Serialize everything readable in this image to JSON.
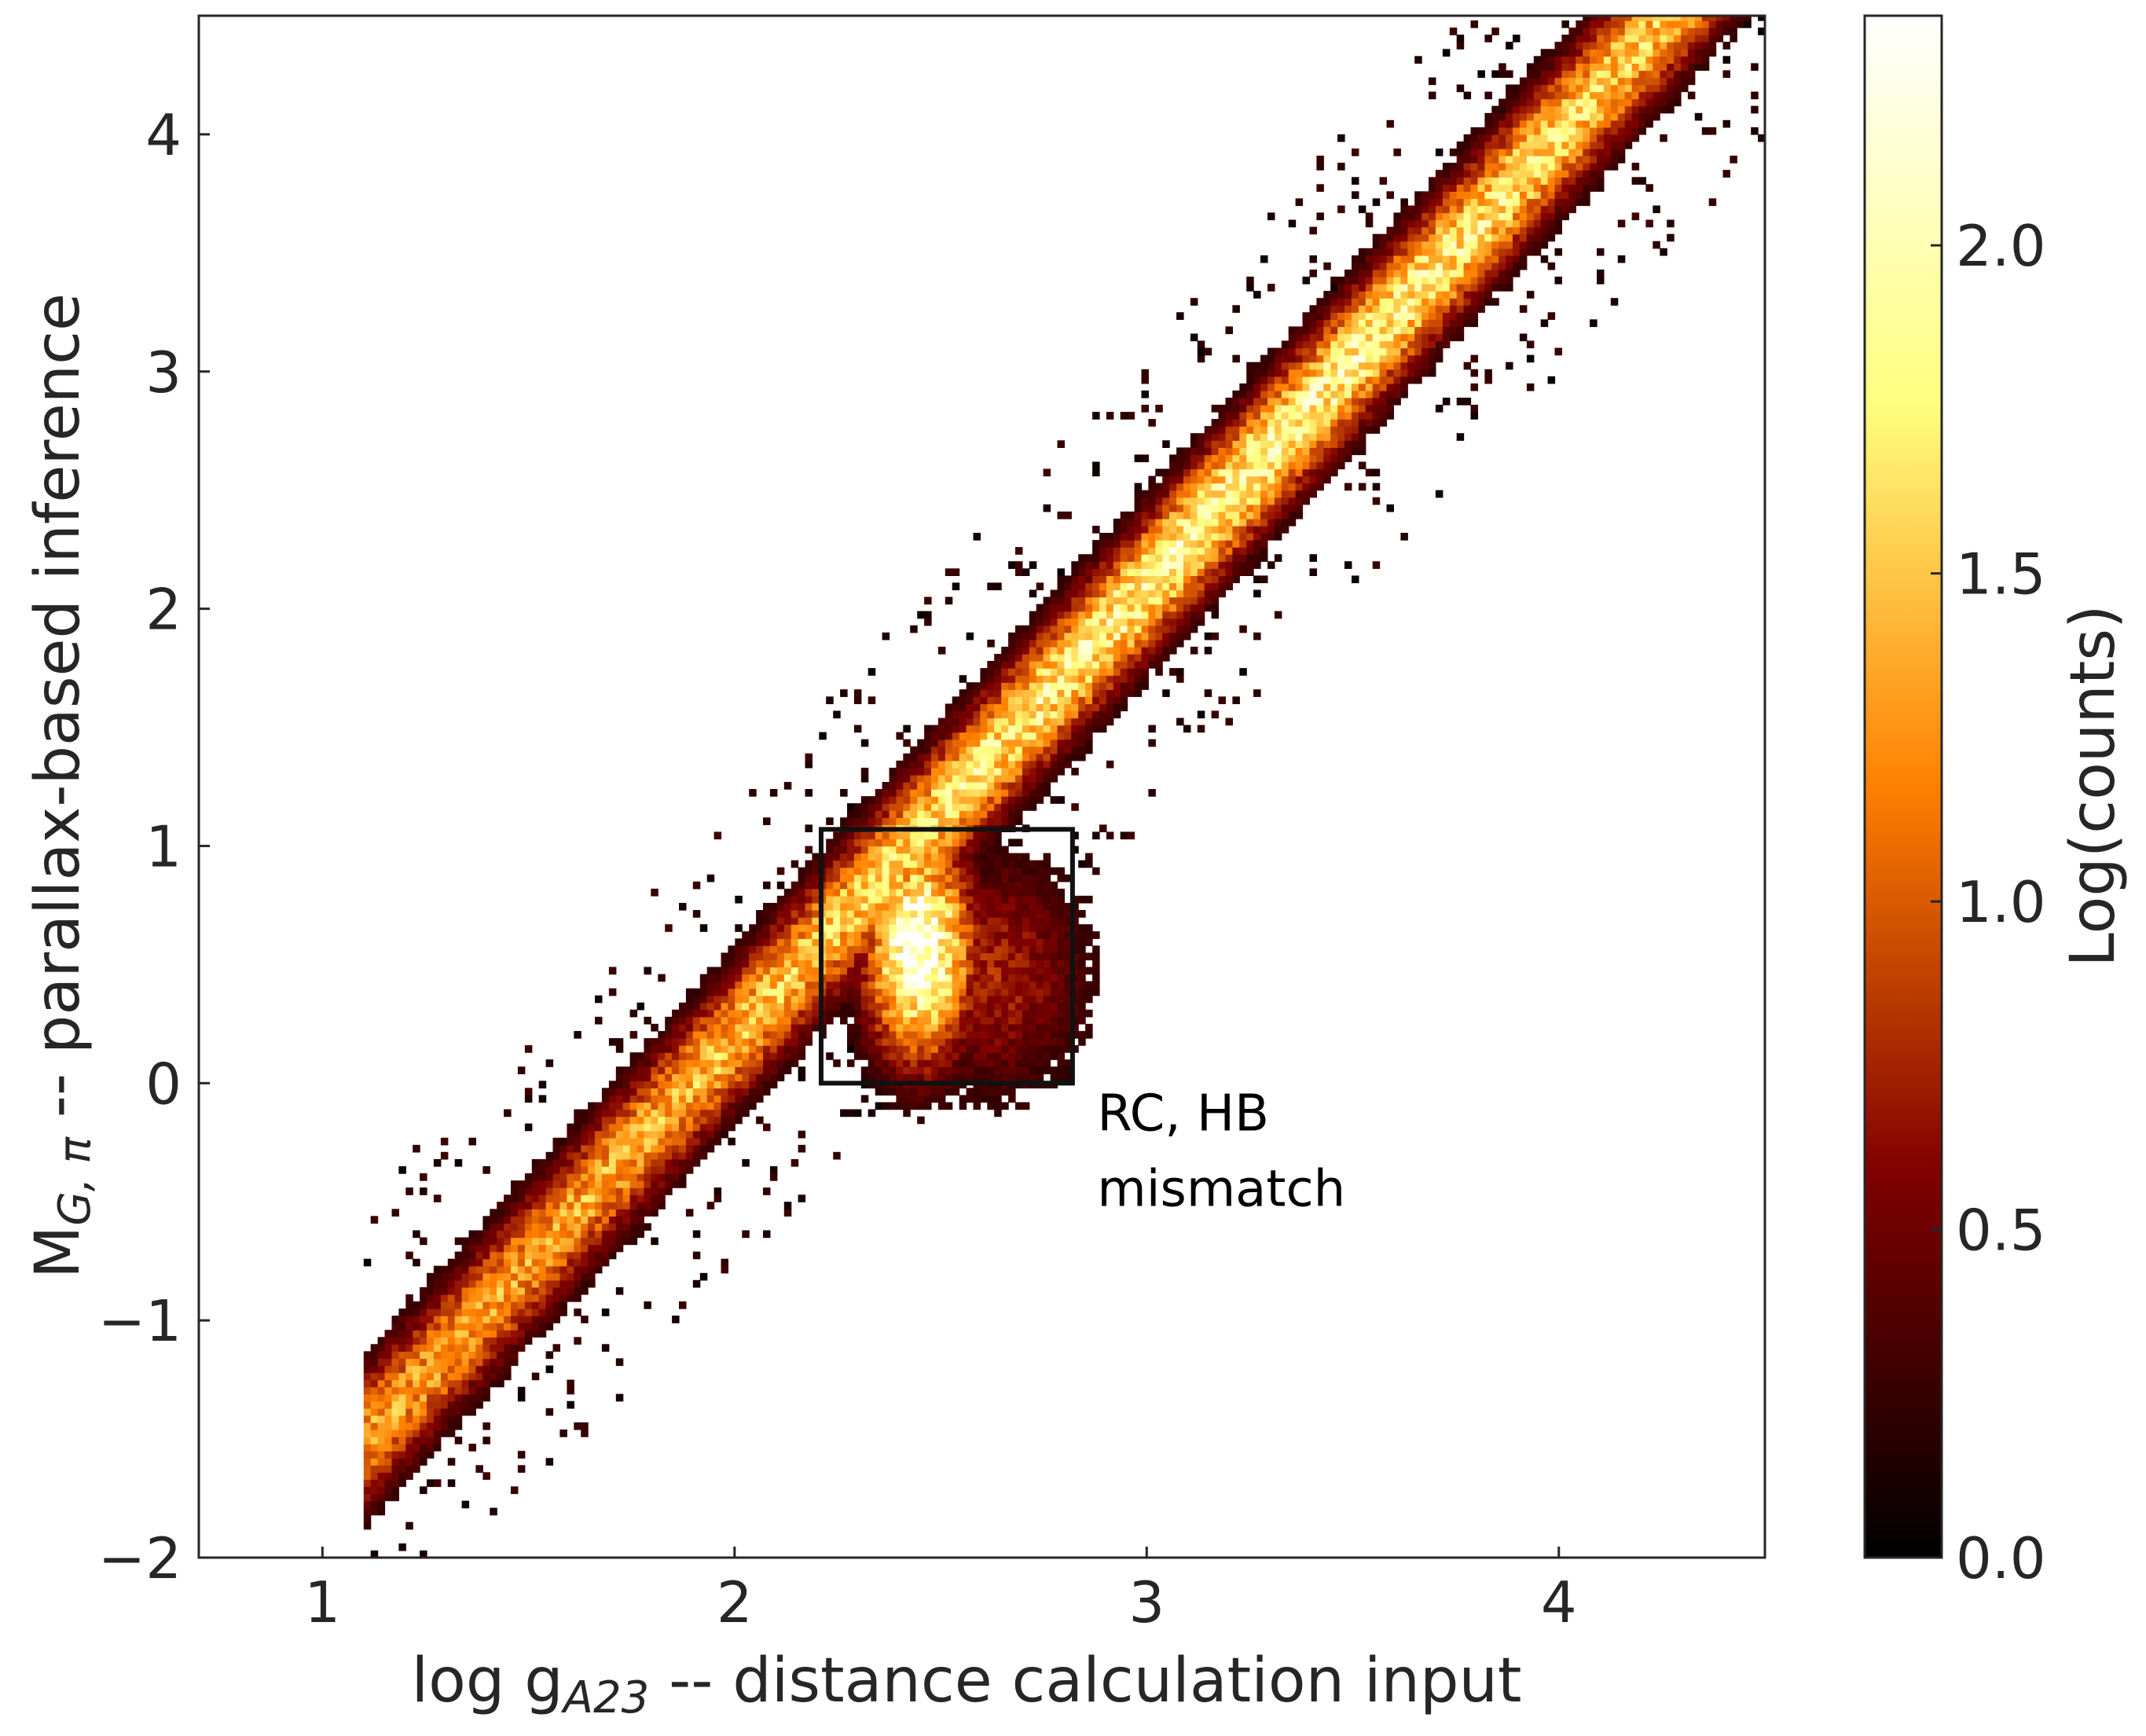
{
  "chart_data": {
    "type": "heatmap",
    "title": "",
    "xlabel": {
      "base": "log g",
      "subscript": "A23",
      "suffix": " -- distance calculation input"
    },
    "ylabel": {
      "base": "M",
      "subscript": "G, π",
      "suffix": " -- parallax-based inference"
    },
    "xlim": [
      0.7,
      4.5
    ],
    "ylim": [
      -2.0,
      4.5
    ],
    "xticks": [
      1,
      2,
      3,
      4
    ],
    "xtick_labels": [
      "1",
      "2",
      "3",
      "4"
    ],
    "yticks": [
      -2,
      -1,
      0,
      1,
      2,
      3,
      4
    ],
    "ytick_labels": [
      "−2",
      "−1",
      "0",
      "1",
      "2",
      "3",
      "4"
    ],
    "grid": false,
    "colormap": "afmhot",
    "colorbar": {
      "label": "Log(counts)",
      "range": [
        0.0,
        2.35
      ],
      "ticks": [
        0.0,
        0.5,
        1.0,
        1.5,
        2.0
      ],
      "tick_labels": [
        "0.0",
        "0.5",
        "1.0",
        "1.5",
        "2.0"
      ]
    },
    "density_model": {
      "relation": "M_G ≈ 1.9 × logg − 3.6",
      "main_band_peak_log_counts": 1.85,
      "scatter_width": 0.2,
      "red_clump_center": [
        2.44,
        0.55
      ],
      "red_clump_peak_log_counts": 2.35,
      "support_x": [
        1.1,
        4.5
      ]
    },
    "annotations": [
      {
        "type": "rectangle",
        "x_range": [
          2.21,
          2.82
        ],
        "y_range": [
          0.0,
          1.07
        ],
        "text_lines": [
          "RC, HB",
          "mismatch"
        ],
        "text_anchor": [
          2.88,
          -0.2
        ]
      }
    ]
  }
}
